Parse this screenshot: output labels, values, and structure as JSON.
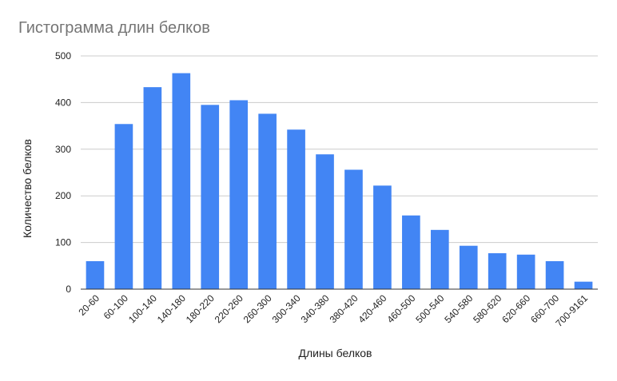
{
  "chart_data": {
    "type": "bar",
    "title": "Гистограмма длин белков",
    "xlabel": "Длины белков",
    "ylabel": "Количество белков",
    "ylim": [
      0,
      500
    ],
    "yticks": [
      0,
      100,
      200,
      300,
      400,
      500
    ],
    "grid": true,
    "legend": "none",
    "categories": [
      "20-60",
      "60-100",
      "100-140",
      "140-180",
      "180-220",
      "220-260",
      "260-300",
      "300-340",
      "340-380",
      "380-420",
      "420-460",
      "460-500",
      "500-540",
      "540-580",
      "580-620",
      "620-660",
      "660-700",
      "700-9161"
    ],
    "values": [
      60,
      354,
      433,
      463,
      395,
      405,
      376,
      342,
      289,
      256,
      222,
      158,
      127,
      93,
      77,
      74,
      60,
      16
    ],
    "bar_color": "#4285f4",
    "grid_color": "#cccccc"
  }
}
